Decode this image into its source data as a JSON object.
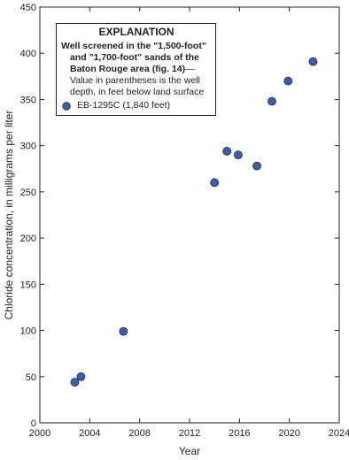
{
  "chart_data": {
    "type": "scatter",
    "legend_title": "EXPLANATION",
    "legend_heading": "Well screened in the \"1,500-foot\" and \"1,700-foot\" sands of the Baton Rouge area (fig. 14)",
    "legend_note": "—Value in parentheses is the well depth, in feet below land surface",
    "x_label": "Year",
    "y_label": "Chloride concentration, in milligrams per liter",
    "xlim": [
      2000,
      2024
    ],
    "xticks": [
      2000,
      2004,
      2008,
      2012,
      2016,
      2020,
      2024
    ],
    "ylim": [
      0,
      450
    ],
    "yticks": [
      0,
      50,
      100,
      150,
      200,
      250,
      300,
      350,
      400,
      450
    ],
    "series": [
      {
        "name": "EB-1295C (1,840 feet)",
        "color": "#3f5ca8",
        "x": [
          2002.8,
          2003.3,
          2006.7,
          2014.0,
          2015.0,
          2015.9,
          2017.4,
          2018.6,
          2019.9,
          2021.9
        ],
        "values": [
          44,
          50,
          99,
          260,
          294,
          290,
          278,
          348,
          370,
          391
        ]
      }
    ]
  }
}
